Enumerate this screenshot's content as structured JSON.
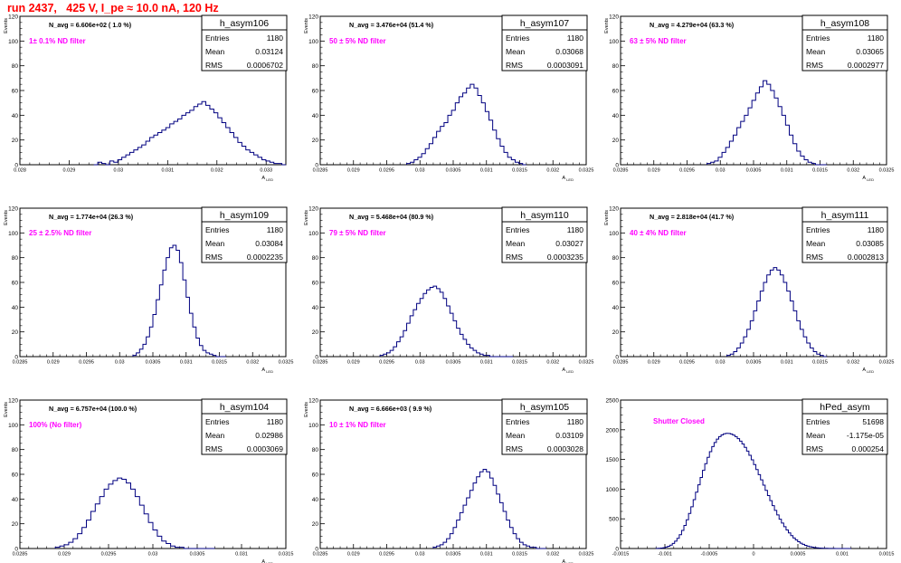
{
  "title": "run 2437,   425 V, I_pe ≈ 10.0 nA, 120 Hz",
  "style": {
    "title_color": "#ff0000",
    "hist_color": "#000080",
    "filter_label_color": "#ff00ff",
    "axis_color": "#000000",
    "frame_color": "#000000"
  },
  "stats_labels": {
    "entries": "Entries",
    "mean": "Mean",
    "rms": "RMS"
  },
  "chart_data": [
    {
      "type": "histogram",
      "name": "h_asym106",
      "ylabel": "Events",
      "xlabel": "A_LED",
      "navg": "N_avg = 6.606e+02 ( 1.0 %)",
      "filter": "1± 0.1% ND filter",
      "stats": {
        "entries": "1180",
        "mean": "0.03124",
        "rms": "0.0006702"
      },
      "xlim": [
        0.028,
        0.0334
      ],
      "ylim": [
        0,
        120
      ],
      "yticks": [
        0,
        20,
        40,
        60,
        80,
        100,
        120
      ],
      "xticks": [
        0.028,
        0.029,
        0.03,
        0.031,
        0.032,
        0.033
      ],
      "xticklabels": [
        "0.028",
        "0.029",
        "0.03",
        "0.031",
        "0.032",
        "0.033"
      ],
      "bin_edges": [
        0.0295,
        0.0334
      ],
      "counts": [
        0,
        2,
        1,
        0,
        3,
        2,
        4,
        6,
        8,
        10,
        12,
        14,
        16,
        19,
        22,
        24,
        26,
        28,
        30,
        33,
        35,
        37,
        40,
        42,
        44,
        47,
        49,
        51,
        48,
        45,
        42,
        38,
        34,
        30,
        26,
        22,
        18,
        15,
        12,
        10,
        8,
        6,
        4,
        3,
        2,
        1,
        1,
        0
      ]
    },
    {
      "type": "histogram",
      "name": "h_asym107",
      "ylabel": "Events",
      "xlabel": "A_LED",
      "navg": "N_avg = 3.476e+04 (51.4 %)",
      "filter": "50 ± 5% ND filter",
      "stats": {
        "entries": "1180",
        "mean": "0.03068",
        "rms": "0.0003091"
      },
      "xlim": [
        0.0285,
        0.0325
      ],
      "ylim": [
        0,
        120
      ],
      "yticks": [
        0,
        20,
        40,
        60,
        80,
        100,
        120
      ],
      "xticks": [
        0.0285,
        0.029,
        0.0295,
        0.03,
        0.0305,
        0.031,
        0.0315,
        0.032,
        0.0325
      ],
      "xticklabels": [
        "0.0285",
        "0.029",
        "0.0295",
        "0.03",
        "0.0305",
        "0.031",
        "0.0315",
        "0.032",
        "0.0325"
      ],
      "bin_edges": [
        0.0298,
        0.0316
      ],
      "counts": [
        1,
        2,
        4,
        6,
        9,
        13,
        17,
        22,
        27,
        31,
        34,
        40,
        44,
        50,
        55,
        58,
        62,
        65,
        62,
        56,
        50,
        43,
        36,
        28,
        21,
        15,
        10,
        6,
        4,
        2,
        1,
        0
      ]
    },
    {
      "type": "histogram",
      "name": "h_asym108",
      "ylabel": "Events",
      "xlabel": "A_LED",
      "navg": "N_avg = 4.279e+04 (63.3 %)",
      "filter": "63 ± 5% ND filter",
      "stats": {
        "entries": "1180",
        "mean": "0.03065",
        "rms": "0.0002977"
      },
      "xlim": [
        0.0285,
        0.0325
      ],
      "ylim": [
        0,
        120
      ],
      "yticks": [
        0,
        20,
        40,
        60,
        80,
        100,
        120
      ],
      "xticks": [
        0.0285,
        0.029,
        0.0295,
        0.03,
        0.0305,
        0.031,
        0.0315,
        0.032,
        0.0325
      ],
      "xticklabels": [
        "0.0285",
        "0.029",
        "0.0295",
        "0.03",
        "0.0305",
        "0.031",
        "0.0315",
        "0.032",
        "0.0325"
      ],
      "bin_edges": [
        0.0298,
        0.0316
      ],
      "counts": [
        1,
        2,
        3,
        6,
        10,
        14,
        19,
        24,
        30,
        35,
        40,
        46,
        52,
        58,
        63,
        68,
        65,
        60,
        54,
        47,
        40,
        32,
        24,
        17,
        11,
        7,
        4,
        2,
        1,
        0,
        0,
        0
      ]
    },
    {
      "type": "histogram",
      "name": "h_asym109",
      "ylabel": "Events",
      "xlabel": "A_LED",
      "navg": "N_avg = 1.774e+04 (26.3 %)",
      "filter": "25 ± 2.5% ND filter",
      "stats": {
        "entries": "1180",
        "mean": "0.03084",
        "rms": "0.0002235"
      },
      "xlim": [
        0.0285,
        0.0325
      ],
      "ylim": [
        0,
        120
      ],
      "yticks": [
        0,
        20,
        40,
        60,
        80,
        100,
        120
      ],
      "xticks": [
        0.0285,
        0.029,
        0.0295,
        0.03,
        0.0305,
        0.031,
        0.0315,
        0.032,
        0.0325
      ],
      "xticklabels": [
        "0.0285",
        "0.029",
        "0.0295",
        "0.03",
        "0.0305",
        "0.031",
        "0.0315",
        "0.032",
        "0.0325"
      ],
      "bin_edges": [
        0.0302,
        0.0316
      ],
      "counts": [
        1,
        3,
        6,
        10,
        16,
        24,
        34,
        46,
        58,
        70,
        80,
        88,
        90,
        86,
        76,
        62,
        48,
        35,
        24,
        15,
        9,
        5,
        3,
        2,
        1,
        0,
        0,
        0
      ]
    },
    {
      "type": "histogram",
      "name": "h_asym110",
      "ylabel": "Events",
      "xlabel": "A_LED",
      "navg": "N_avg = 5.468e+04 (80.9 %)",
      "filter": "79 ± 5% ND filter",
      "stats": {
        "entries": "1180",
        "mean": "0.03027",
        "rms": "0.0003235"
      },
      "xlim": [
        0.0285,
        0.0325
      ],
      "ylim": [
        0,
        120
      ],
      "yticks": [
        0,
        20,
        40,
        60,
        80,
        100,
        120
      ],
      "xticks": [
        0.0285,
        0.029,
        0.0295,
        0.03,
        0.0305,
        0.031,
        0.0315,
        0.032,
        0.0325
      ],
      "xticklabels": [
        "0.0285",
        "0.029",
        "0.0295",
        "0.03",
        "0.0305",
        "0.031",
        "0.0315",
        "0.032",
        "0.0325"
      ],
      "bin_edges": [
        0.0294,
        0.0314
      ],
      "counts": [
        1,
        2,
        3,
        5,
        8,
        12,
        16,
        21,
        27,
        33,
        38,
        43,
        47,
        51,
        54,
        56,
        57,
        55,
        52,
        47,
        41,
        35,
        29,
        23,
        18,
        14,
        10,
        7,
        5,
        3,
        2,
        1,
        1,
        0,
        0,
        0,
        0,
        0,
        0,
        0
      ]
    },
    {
      "type": "histogram",
      "name": "h_asym111",
      "ylabel": "Events",
      "xlabel": "A_LED",
      "navg": "N_avg = 2.818e+04 (41.7 %)",
      "filter": "40 ± 4% ND filter",
      "stats": {
        "entries": "1180",
        "mean": "0.03085",
        "rms": "0.0002813"
      },
      "xlim": [
        0.0285,
        0.0325
      ],
      "ylim": [
        0,
        120
      ],
      "yticks": [
        0,
        20,
        40,
        60,
        80,
        100,
        120
      ],
      "xticks": [
        0.0285,
        0.029,
        0.0295,
        0.03,
        0.0305,
        0.031,
        0.0315,
        0.032,
        0.0325
      ],
      "xticklabels": [
        "0.0285",
        "0.029",
        "0.0295",
        "0.03",
        "0.0305",
        "0.031",
        "0.0315",
        "0.032",
        "0.0325"
      ],
      "bin_edges": [
        0.0301,
        0.0316
      ],
      "counts": [
        1,
        2,
        4,
        7,
        11,
        16,
        22,
        29,
        37,
        45,
        53,
        60,
        66,
        70,
        72,
        70,
        66,
        60,
        53,
        45,
        37,
        29,
        22,
        16,
        11,
        7,
        4,
        2,
        1,
        0
      ]
    },
    {
      "type": "histogram",
      "name": "h_asym104",
      "ylabel": "Events",
      "xlabel": "A_LED",
      "navg": "N_avg = 6.757e+04 (100.0 %)",
      "filter": "100% (No filter)",
      "stats": {
        "entries": "1180",
        "mean": "0.02986",
        "rms": "0.0003069"
      },
      "xlim": [
        0.0285,
        0.0315
      ],
      "ylim": [
        0,
        120
      ],
      "yticks": [
        0,
        20,
        40,
        60,
        80,
        100,
        120
      ],
      "xticks": [
        0.0285,
        0.029,
        0.0295,
        0.03,
        0.0305,
        0.031,
        0.0315
      ],
      "xticklabels": [
        "0.0285",
        "0.029",
        "0.0295",
        "0.03",
        "0.0305",
        "0.031",
        "0.0315"
      ],
      "bin_edges": [
        0.0289,
        0.0307
      ],
      "counts": [
        1,
        2,
        3,
        5,
        8,
        12,
        17,
        23,
        30,
        36,
        42,
        48,
        52,
        55,
        57,
        56,
        53,
        48,
        42,
        35,
        28,
        21,
        15,
        10,
        6,
        4,
        2,
        1,
        1,
        0,
        0,
        0,
        0,
        0,
        0,
        0
      ]
    },
    {
      "type": "histogram",
      "name": "h_asym105",
      "ylabel": "Events",
      "xlabel": "A_LED",
      "navg": "N_avg = 6.666e+03 ( 9.9 %)",
      "filter": "10 ± 1% ND filter",
      "stats": {
        "entries": "1180",
        "mean": "0.03109",
        "rms": "0.0003028"
      },
      "xlim": [
        0.0285,
        0.0325
      ],
      "ylim": [
        0,
        120
      ],
      "yticks": [
        0,
        20,
        40,
        60,
        80,
        100,
        120
      ],
      "xticks": [
        0.0285,
        0.029,
        0.0295,
        0.03,
        0.0305,
        0.031,
        0.0315,
        0.032,
        0.0325
      ],
      "xticklabels": [
        "0.0285",
        "0.029",
        "0.0295",
        "0.03",
        "0.0305",
        "0.031",
        "0.0315",
        "0.032",
        "0.0325"
      ],
      "bin_edges": [
        0.0302,
        0.0319
      ],
      "counts": [
        1,
        2,
        3,
        5,
        8,
        12,
        17,
        23,
        29,
        35,
        41,
        47,
        53,
        58,
        62,
        64,
        62,
        57,
        51,
        44,
        37,
        30,
        23,
        17,
        12,
        8,
        5,
        3,
        2,
        1,
        1,
        0,
        0,
        0
      ]
    },
    {
      "type": "histogram",
      "name": "hPed_asym",
      "ylabel": "",
      "xlabel": "",
      "navg": "",
      "filter": "Shutter Closed",
      "stats": {
        "entries": "51698",
        "mean": "-1.175e-05",
        "rms": "0.000254"
      },
      "xlim": [
        -0.0015,
        0.0015
      ],
      "ylim": [
        0,
        2500
      ],
      "yticks": [
        0,
        500,
        1000,
        1500,
        2000,
        2500
      ],
      "xticks": [
        -0.0015,
        -0.001,
        -0.0005,
        0,
        0.0005,
        0.001,
        0.0015
      ],
      "xticklabels": [
        "-0.0015",
        "-0.001",
        "-0.0005",
        "0",
        "0.0005",
        "0.001",
        "0.0015"
      ],
      "bin_edges": [
        -0.0011,
        0.0011
      ],
      "counts": [
        2,
        4,
        8,
        14,
        24,
        38,
        58,
        86,
        124,
        172,
        232,
        304,
        388,
        484,
        590,
        704,
        824,
        948,
        1072,
        1196,
        1316,
        1430,
        1536,
        1632,
        1716,
        1786,
        1842,
        1884,
        1914,
        1932,
        1940,
        1938,
        1928,
        1910,
        1884,
        1850,
        1808,
        1760,
        1704,
        1640,
        1570,
        1494,
        1414,
        1330,
        1244,
        1156,
        1068,
        980,
        892,
        806,
        722,
        642,
        566,
        494,
        428,
        368,
        312,
        262,
        218,
        178,
        144,
        114,
        90,
        70,
        54,
        40,
        30,
        22,
        16,
        12,
        8,
        6,
        4,
        3,
        2,
        1,
        1,
        0,
        0,
        0,
        0,
        0,
        0,
        0
      ]
    }
  ]
}
